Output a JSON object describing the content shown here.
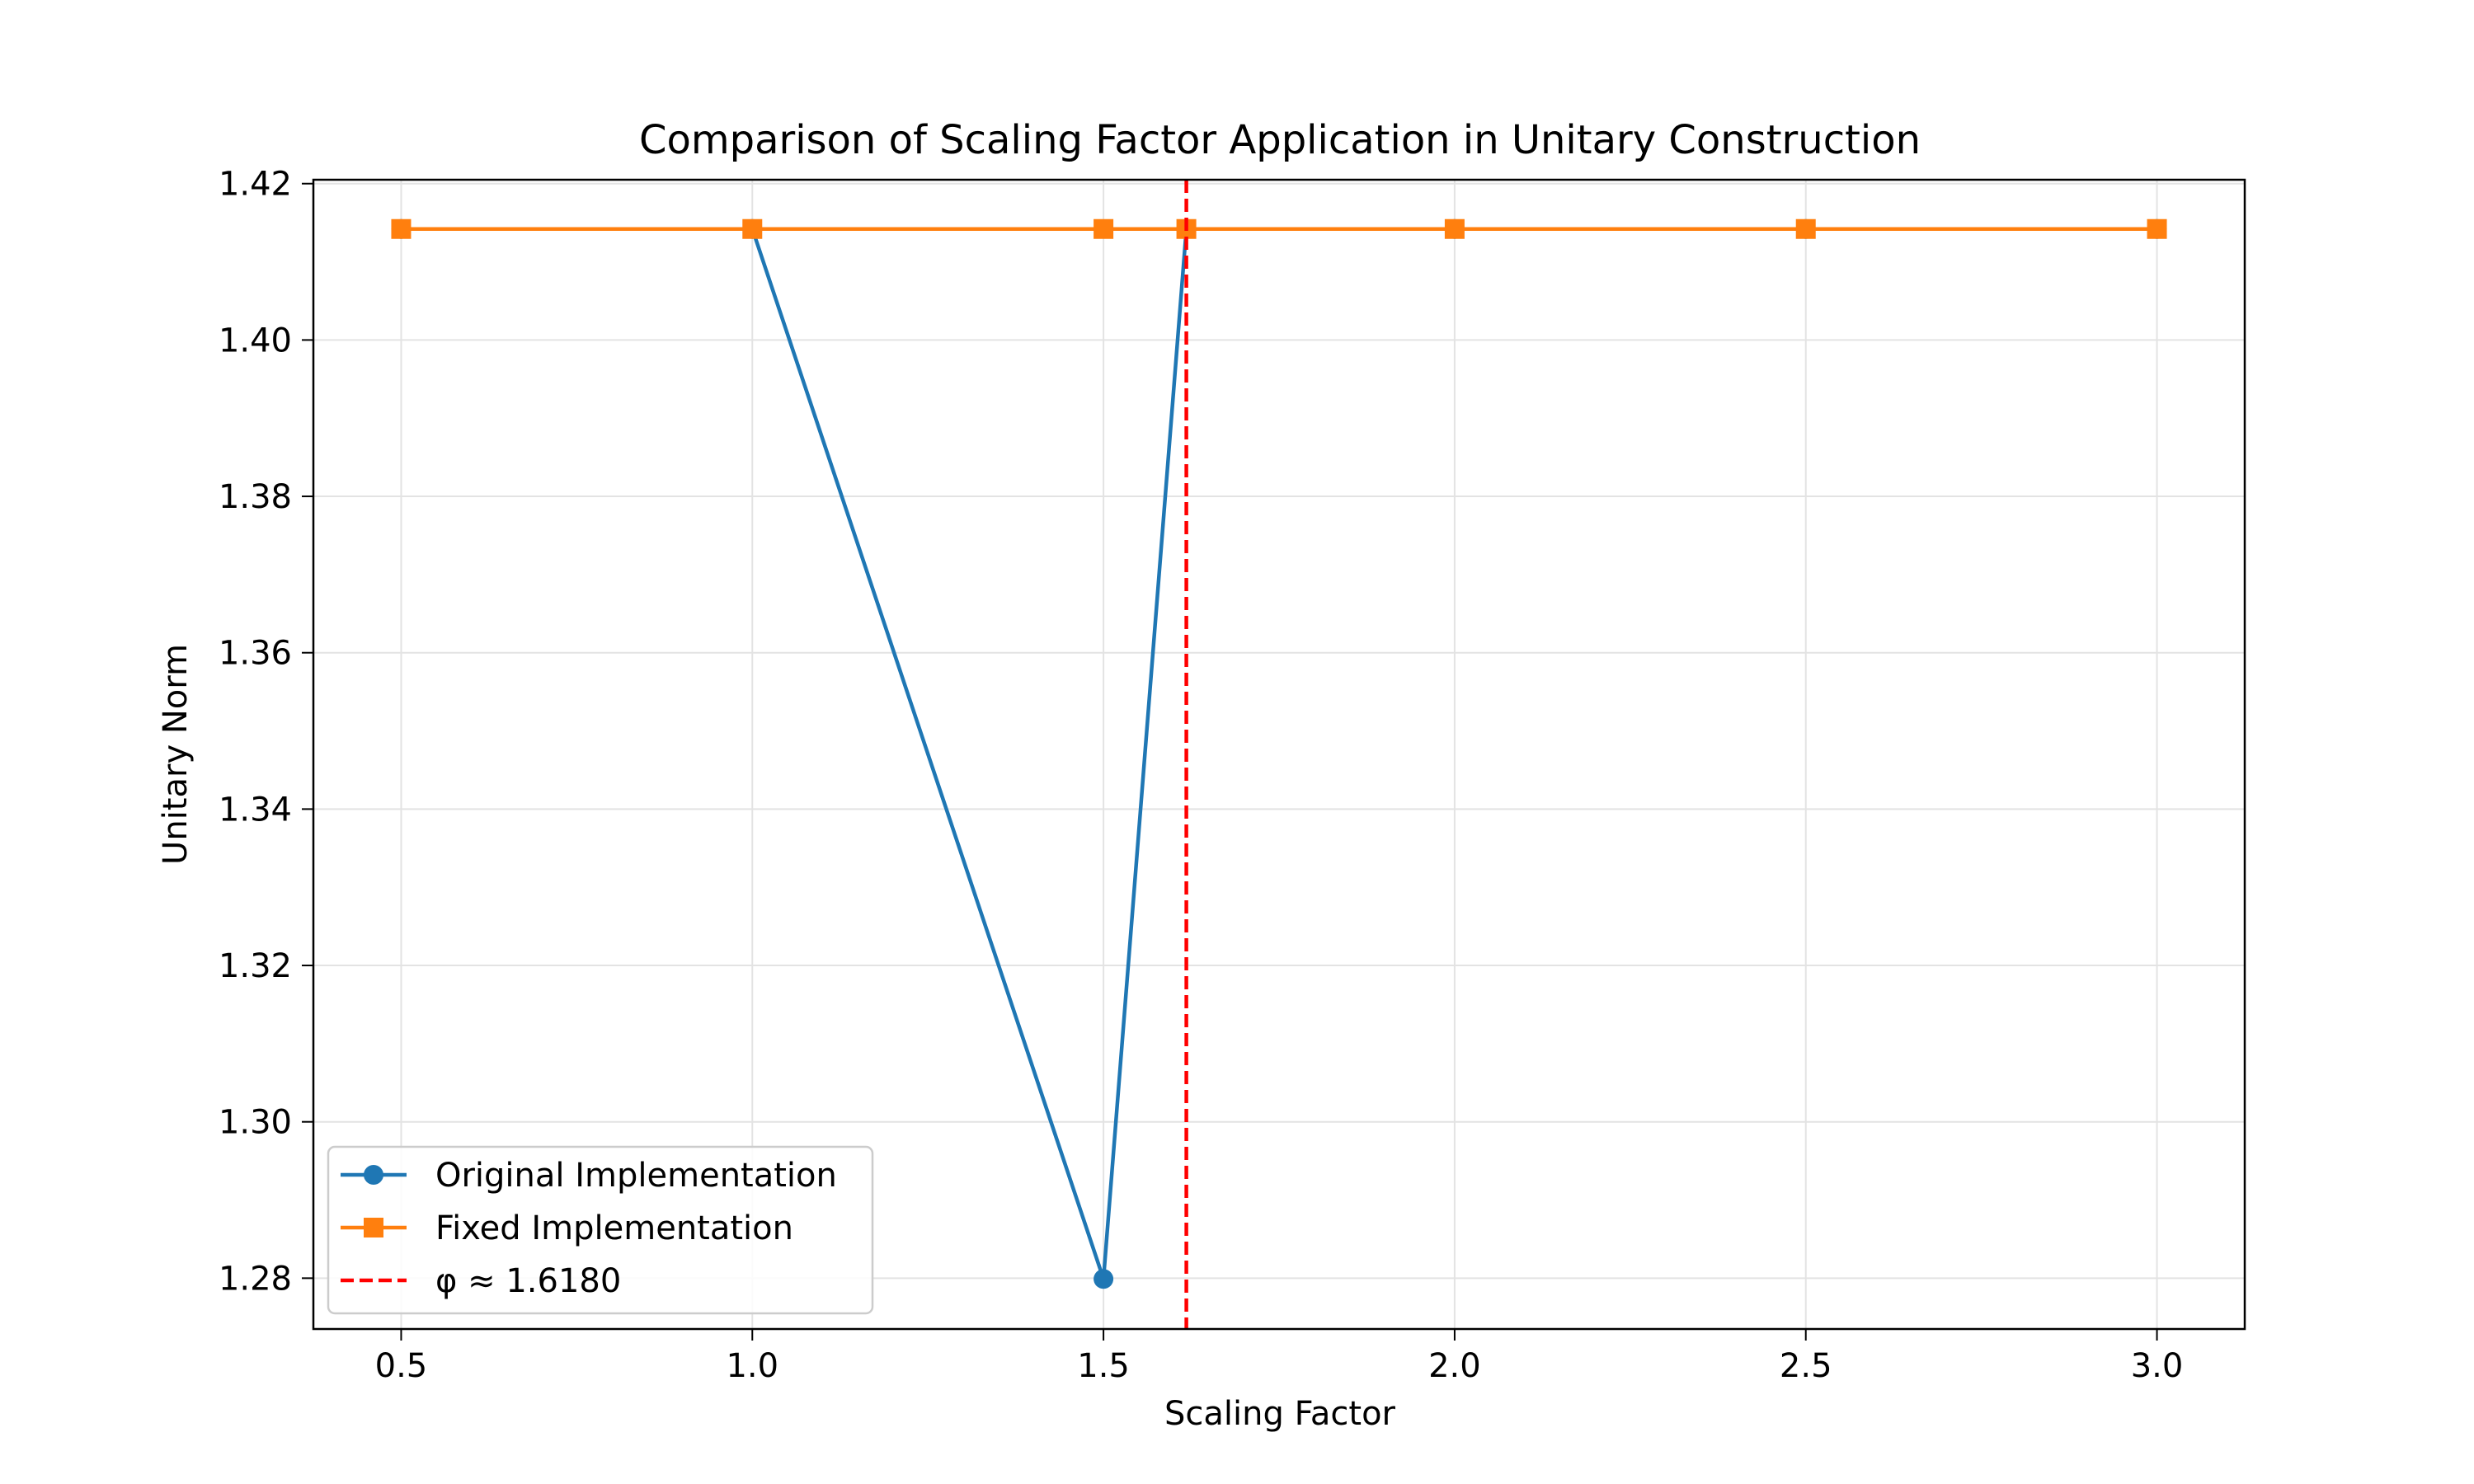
{
  "chart_data": {
    "type": "line",
    "title": "Comparison of Scaling Factor Application in Unitary Construction",
    "xlabel": "Scaling Factor",
    "ylabel": "Unitary Norm",
    "xlim": [
      0.375,
      3.125
    ],
    "ylim": [
      1.2735,
      1.4205
    ],
    "xticks": [
      0.5,
      1.0,
      1.5,
      2.0,
      2.5,
      3.0
    ],
    "xtick_labels": [
      "0.5",
      "1.0",
      "1.5",
      "2.0",
      "2.5",
      "3.0"
    ],
    "yticks": [
      1.28,
      1.3,
      1.32,
      1.34,
      1.36,
      1.38,
      1.4,
      1.42
    ],
    "ytick_labels": [
      "1.28",
      "1.30",
      "1.32",
      "1.34",
      "1.36",
      "1.38",
      "1.40",
      "1.42"
    ],
    "grid": true,
    "legend_position": "lower-left",
    "series": [
      {
        "name": "Original Implementation",
        "color": "#1f77b4",
        "marker": "circle",
        "x": [
          0.5,
          1.0,
          1.5,
          1.618,
          2.0,
          2.5,
          3.0
        ],
        "y": [
          1.4142,
          1.4142,
          1.2799,
          1.4142,
          1.4142,
          1.4142,
          1.4142
        ]
      },
      {
        "name": "Fixed Implementation",
        "color": "#ff7f0e",
        "marker": "square",
        "x": [
          0.5,
          1.0,
          1.5,
          1.618,
          2.0,
          2.5,
          3.0
        ],
        "y": [
          1.4142,
          1.4142,
          1.4142,
          1.4142,
          1.4142,
          1.4142,
          1.4142
        ]
      }
    ],
    "reference_lines": [
      {
        "name": "φ ≈ 1.6180",
        "x": 1.618,
        "color": "#ff0000",
        "style": "dashed"
      }
    ]
  }
}
